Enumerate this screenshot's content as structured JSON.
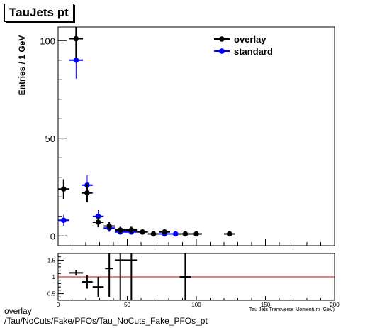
{
  "chart_data": [
    {
      "type": "scatter",
      "title": "TauJets pt",
      "ylabel": "Entries / 1 GeV",
      "xlabel": "Tau Jets Transverse Momentum (GeV)",
      "xlim": [
        0,
        200
      ],
      "ylim": [
        -5,
        107
      ],
      "xticks": [
        0,
        50,
        100,
        150,
        200
      ],
      "yticks": [
        0,
        50,
        100
      ],
      "legend_position": "top-right",
      "colors": {
        "overlay": "#000000",
        "standard": "#0000ff"
      },
      "series": [
        {
          "name": "overlay",
          "points": [
            {
              "x": 4,
              "xerr": 4,
              "y": 24,
              "yerr": 5
            },
            {
              "x": 13,
              "xerr": 5,
              "y": 101,
              "yerr": 10
            },
            {
              "x": 21,
              "xerr": 4,
              "y": 22,
              "yerr": 4.7
            },
            {
              "x": 29,
              "xerr": 4,
              "y": 7,
              "yerr": 2.6
            },
            {
              "x": 37,
              "xerr": 4,
              "y": 5,
              "yerr": 2.2
            },
            {
              "x": 45,
              "xerr": 4,
              "y": 3,
              "yerr": 1.7
            },
            {
              "x": 53,
              "xerr": 4,
              "y": 3,
              "yerr": 1.7
            },
            {
              "x": 61,
              "xerr": 4,
              "y": 2,
              "yerr": 1.4
            },
            {
              "x": 69,
              "xerr": 4,
              "y": 1,
              "yerr": 1
            },
            {
              "x": 77,
              "xerr": 4,
              "y": 2,
              "yerr": 1.4
            },
            {
              "x": 92,
              "xerr": 5,
              "y": 1,
              "yerr": 1
            },
            {
              "x": 100,
              "xerr": 4,
              "y": 1,
              "yerr": 1
            },
            {
              "x": 124,
              "xerr": 4,
              "y": 1,
              "yerr": 1
            }
          ]
        },
        {
          "name": "standard",
          "points": [
            {
              "x": 4,
              "xerr": 4,
              "y": 8,
              "yerr": 2.8
            },
            {
              "x": 13,
              "xerr": 5,
              "y": 90,
              "yerr": 9.5
            },
            {
              "x": 21,
              "xerr": 4,
              "y": 26,
              "yerr": 5.1
            },
            {
              "x": 29,
              "xerr": 4,
              "y": 10,
              "yerr": 3.2
            },
            {
              "x": 37,
              "xerr": 4,
              "y": 4,
              "yerr": 2
            },
            {
              "x": 45,
              "xerr": 4,
              "y": 2,
              "yerr": 1.4
            },
            {
              "x": 53,
              "xerr": 4,
              "y": 2,
              "yerr": 1.4
            },
            {
              "x": 77,
              "xerr": 4,
              "y": 1,
              "yerr": 1
            },
            {
              "x": 85,
              "xerr": 4,
              "y": 1,
              "yerr": 1
            }
          ]
        }
      ]
    },
    {
      "type": "scatter",
      "xlabel": "Tau Jets Transverse Momentum (GeV)",
      "xlim": [
        0,
        200
      ],
      "ylim": [
        0.3,
        1.7
      ],
      "xticks": [
        0,
        50,
        100,
        150,
        200
      ],
      "yticks": [
        0.5,
        1,
        1.5
      ],
      "reference_line": {
        "y": 1,
        "color": "#cc0000"
      },
      "series": [
        {
          "name": "overlay",
          "points": [
            {
              "x": 13,
              "xerr": 5,
              "y": 1.12,
              "yerr": 0.08
            },
            {
              "x": 21,
              "xerr": 4,
              "y": 0.85,
              "yerr": 0.2
            },
            {
              "x": 29,
              "xerr": 4,
              "y": 0.7,
              "yerr": 0.3
            },
            {
              "x": 37,
              "xerr": 3,
              "y": 1.25,
              "yerr": 0.85
            },
            {
              "x": 45,
              "xerr": 4,
              "y": 1.5,
              "yerr": 1.2
            },
            {
              "x": 53,
              "xerr": 4,
              "y": 1.5,
              "yerr": 1.2
            },
            {
              "x": 92,
              "xerr": 4,
              "y": 1.0,
              "yerr": 1.0
            }
          ]
        }
      ]
    }
  ],
  "footer": {
    "line1": "overlay",
    "line2": "/Tau/NoCuts/Fake/PFOs/Tau_NoCuts_Fake_PFOs_pt"
  }
}
